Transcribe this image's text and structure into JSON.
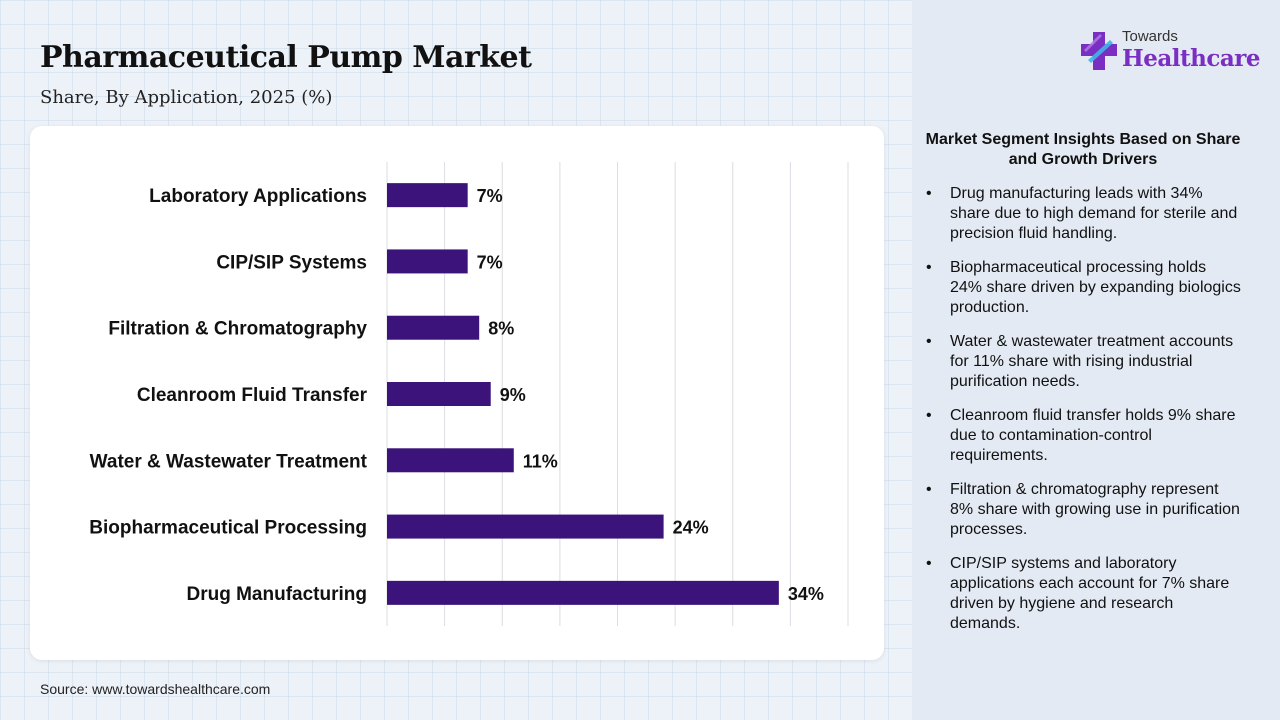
{
  "header": {
    "title": "Pharmaceutical Pump Market",
    "subtitle": "Share, By Application, 2025 (%)"
  },
  "logo": {
    "top": "Towards",
    "bottom": "Healthcare",
    "icon": "cross-icon",
    "colors": {
      "purple": "#7a2fc2",
      "cyan": "#3fb6e8"
    }
  },
  "chart_data": {
    "type": "bar",
    "orientation": "horizontal",
    "categories": [
      "Laboratory Applications",
      "CIP/SIP Systems",
      "Filtration & Chromatography",
      "Cleanroom Fluid Transfer",
      "Water & Wastewater Treatment",
      "Biopharmaceutical Processing",
      "Drug Manufacturing"
    ],
    "values": [
      7,
      7,
      8,
      9,
      11,
      24,
      34
    ],
    "value_labels": [
      "7%",
      "7%",
      "8%",
      "9%",
      "11%",
      "24%",
      "34%"
    ],
    "title": "Pharmaceutical Pump Market",
    "subtitle": "Share, By Application, 2025 (%)",
    "xlim": [
      0,
      40
    ],
    "grid": true,
    "bar_color": "#3b137a"
  },
  "insights": {
    "title": "Market Segment Insights Based on Share and Growth Drivers",
    "items": [
      "Drug manufacturing leads with 34% share due to high demand for sterile and precision fluid handling.",
      "Biopharmaceutical processing holds 24% share driven by expanding biologics production.",
      "Water & wastewater treatment accounts for 11% share with rising industrial purification needs.",
      "Cleanroom fluid transfer holds 9% share due to contamination-control requirements.",
      "Filtration & chromatography represent 8% share with growing use in purification processes.",
      "CIP/SIP systems and laboratory applications each account for 7% share driven by hygiene and research demands."
    ]
  },
  "footer": {
    "source": "Source: www.towardshealthcare.com"
  }
}
